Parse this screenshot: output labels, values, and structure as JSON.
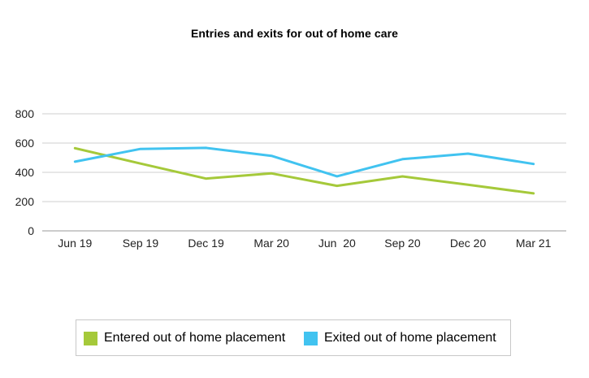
{
  "chart_data": {
    "type": "line",
    "title": "Entries and exits for out of home care",
    "categories": [
      "Jun 19",
      "Sep 19",
      "Dec 19",
      "Mar 20",
      "Jun  20",
      "Sep 20",
      "Dec 20",
      "Mar 21"
    ],
    "series": [
      {
        "name": "Entered out of home placement",
        "color": "#a5c93a",
        "values": [
          565,
          460,
          357,
          393,
          308,
          372,
          315,
          256
        ]
      },
      {
        "name": "Exited out of home placement",
        "color": "#41c3f0",
        "values": [
          473,
          560,
          567,
          513,
          373,
          490,
          528,
          457
        ]
      }
    ],
    "y_ticks": [
      0,
      200,
      400,
      600,
      800
    ],
    "ylim": [
      0,
      800
    ],
    "grid": true,
    "legend_position": "bottom",
    "xlabel": "",
    "ylabel": ""
  }
}
